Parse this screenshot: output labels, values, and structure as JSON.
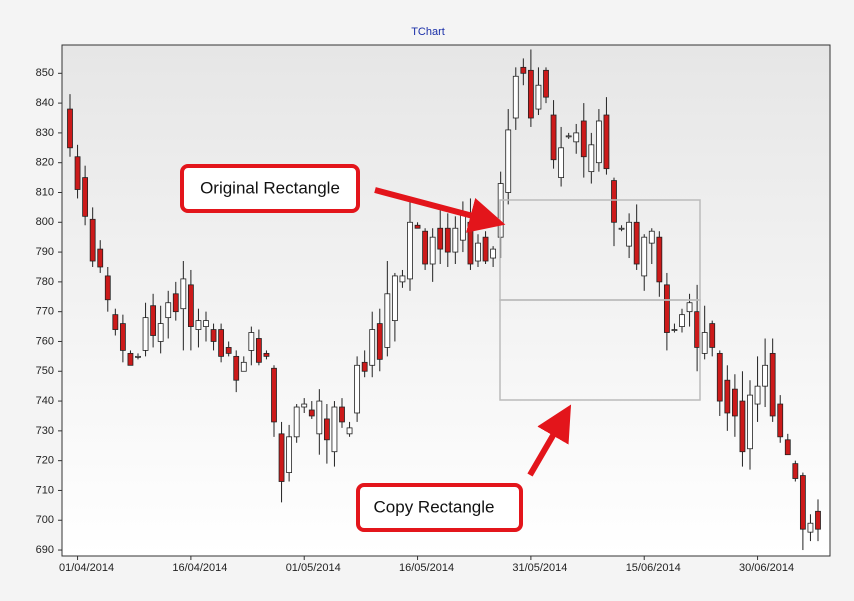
{
  "chart_data": {
    "type": "candlestick",
    "title": "TChart",
    "x": [
      "31/03/2014",
      "01/04/2014",
      "02/04/2014",
      "03/04/2014",
      "04/04/2014",
      "05/04/2014",
      "06/04/2014",
      "07/04/2014",
      "08/04/2014",
      "09/04/2014",
      "10/04/2014",
      "11/04/2014",
      "12/04/2014",
      "13/04/2014",
      "14/04/2014",
      "15/04/2014",
      "16/04/2014",
      "17/04/2014",
      "18/04/2014",
      "19/04/2014",
      "20/04/2014",
      "21/04/2014",
      "22/04/2014",
      "23/04/2014",
      "24/04/2014",
      "25/04/2014",
      "26/04/2014",
      "27/04/2014",
      "28/04/2014",
      "29/04/2014",
      "30/04/2014",
      "01/05/2014",
      "02/05/2014",
      "03/05/2014",
      "04/05/2014",
      "05/05/2014",
      "06/05/2014",
      "07/05/2014",
      "08/05/2014",
      "09/05/2014",
      "10/05/2014",
      "11/05/2014",
      "12/05/2014",
      "13/05/2014",
      "14/05/2014",
      "15/05/2014",
      "16/05/2014",
      "17/05/2014",
      "18/05/2014",
      "19/05/2014",
      "20/05/2014",
      "21/05/2014",
      "22/05/2014",
      "23/05/2014",
      "24/05/2014",
      "25/05/2014",
      "26/05/2014",
      "27/05/2014",
      "28/05/2014",
      "29/05/2014",
      "30/05/2014",
      "31/05/2014",
      "01/06/2014",
      "02/06/2014",
      "03/06/2014",
      "04/06/2014",
      "05/06/2014",
      "06/06/2014",
      "07/06/2014",
      "08/06/2014",
      "09/06/2014",
      "10/06/2014",
      "11/06/2014",
      "12/06/2014",
      "13/06/2014",
      "14/06/2014",
      "15/06/2014",
      "16/06/2014",
      "17/06/2014",
      "18/06/2014",
      "19/06/2014",
      "20/06/2014",
      "21/06/2014",
      "22/06/2014",
      "23/06/2014",
      "24/06/2014",
      "25/06/2014",
      "26/06/2014",
      "27/06/2014",
      "28/06/2014",
      "29/06/2014",
      "30/06/2014",
      "01/07/2014",
      "02/07/2014",
      "03/07/2014",
      "04/07/2014",
      "05/07/2014",
      "06/07/2014",
      "07/07/2014",
      "08/07/2014"
    ],
    "open": [
      838,
      822,
      815,
      801,
      791,
      782,
      769,
      766,
      756,
      755,
      757,
      772,
      760,
      768,
      776,
      771,
      779,
      764,
      765,
      764,
      764,
      758,
      755,
      750,
      757,
      761,
      756,
      751,
      729,
      716,
      728,
      738,
      737,
      729,
      734,
      723,
      738,
      729,
      736,
      753,
      752,
      766,
      758,
      767,
      780,
      781,
      799,
      797,
      786,
      798,
      798,
      790,
      794,
      800,
      787,
      795,
      788,
      795,
      810,
      835,
      852,
      851,
      838,
      851,
      836,
      815,
      829,
      827,
      834,
      817,
      820,
      836,
      814,
      798,
      792,
      800,
      782,
      793,
      795,
      779,
      764,
      765,
      770,
      770,
      756,
      766,
      756,
      747,
      744,
      740,
      724,
      739,
      745,
      756,
      739,
      727,
      719,
      715,
      696,
      703
    ],
    "high": [
      843,
      826,
      819,
      805,
      794,
      785,
      771,
      769,
      757,
      756,
      773,
      776,
      772,
      777,
      780,
      787,
      784,
      771,
      770,
      766,
      766,
      760,
      757,
      755,
      765,
      764,
      757,
      752,
      733,
      732,
      739,
      741,
      740,
      744,
      739,
      740,
      741,
      733,
      755,
      757,
      770,
      771,
      787,
      783,
      784,
      808,
      800,
      798,
      798,
      804,
      803,
      802,
      807,
      808,
      796,
      797,
      792,
      817,
      838,
      852,
      855,
      858,
      852,
      852,
      841,
      832,
      830,
      833,
      840,
      830,
      838,
      842,
      815,
      799,
      803,
      806,
      796,
      798,
      797,
      783,
      766,
      771,
      776,
      779,
      772,
      767,
      757,
      752,
      749,
      750,
      747,
      755,
      761,
      761,
      742,
      729,
      720,
      716,
      702,
      707
    ],
    "low": [
      822,
      808,
      799,
      785,
      783,
      770,
      762,
      753,
      752,
      754,
      755,
      758,
      756,
      761,
      767,
      757,
      757,
      758,
      760,
      757,
      753,
      755,
      743,
      750,
      752,
      752,
      754,
      728,
      706,
      713,
      726,
      736,
      734,
      722,
      719,
      718,
      731,
      728,
      733,
      748,
      748,
      750,
      755,
      760,
      778,
      777,
      798,
      784,
      780,
      786,
      785,
      786,
      790,
      784,
      785,
      786,
      785,
      788,
      806,
      831,
      846,
      832,
      836,
      840,
      818,
      812,
      828,
      823,
      815,
      813,
      817,
      816,
      792,
      797,
      788,
      784,
      777,
      786,
      775,
      757,
      763,
      763,
      765,
      750,
      754,
      755,
      735,
      730,
      728,
      718,
      717,
      733,
      738,
      733,
      726,
      722,
      713,
      690,
      693,
      693
    ],
    "close": [
      825,
      811,
      802,
      787,
      785,
      774,
      764,
      757,
      752,
      755,
      768,
      762,
      766,
      773,
      770,
      781,
      765,
      767,
      767,
      760,
      755,
      756,
      747,
      753,
      763,
      753,
      755,
      733,
      713,
      728,
      738,
      739,
      735,
      740,
      727,
      738,
      733,
      731,
      752,
      750,
      764,
      754,
      776,
      782,
      782,
      800,
      798,
      786,
      795,
      791,
      790,
      798,
      803,
      786,
      793,
      787,
      791,
      813,
      831,
      849,
      850,
      835,
      846,
      842,
      821,
      825,
      829,
      830,
      822,
      826,
      834,
      818,
      800,
      798,
      800,
      786,
      795,
      797,
      780,
      763,
      764,
      769,
      773,
      758,
      763,
      758,
      740,
      736,
      735,
      723,
      742,
      745,
      752,
      735,
      728,
      722,
      714,
      697,
      699,
      697
    ],
    "up_color": "#ffffff",
    "down_color": "#cc1a1a",
    "ylim": [
      688,
      859.5
    ],
    "yticks": [
      690,
      700,
      710,
      720,
      730,
      740,
      750,
      760,
      770,
      780,
      790,
      800,
      810,
      820,
      830,
      840,
      850
    ],
    "xticks": [
      "01/04/2014",
      "16/04/2014",
      "01/05/2014",
      "16/05/2014",
      "31/05/2014",
      "15/06/2014",
      "30/06/2014"
    ],
    "annotations": [
      "Original Rectangle",
      "Copy Rectangle"
    ]
  }
}
